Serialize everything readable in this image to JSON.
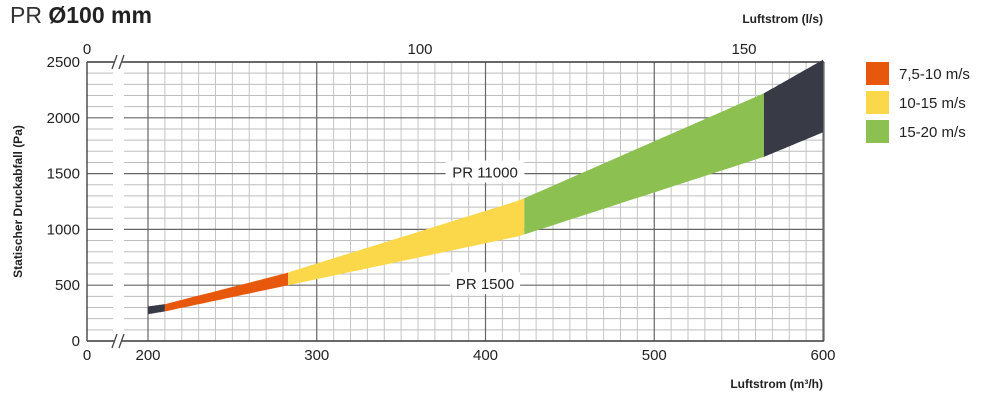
{
  "title": {
    "prefix": "PR",
    "main": "Ø100 mm"
  },
  "chart_data": {
    "type": "area",
    "xlabel": "Luftstrom (m³/h)",
    "x2label": "Luftstrom (l/s)",
    "ylabel": "Statischer Druckabfall (Pa)",
    "xlim": [
      190,
      600
    ],
    "x_break_start_label": "0",
    "x_ticks": [
      200,
      300,
      400,
      500,
      600
    ],
    "x2_ticks": [
      0,
      100,
      150
    ],
    "ylim": [
      0,
      2500
    ],
    "y_ticks": [
      0,
      500,
      1000,
      1500,
      2000,
      2500
    ],
    "grid": true,
    "legend_position": "right",
    "curves": [
      {
        "name": "PR 11000",
        "x": [
          200,
          210,
          280,
          420,
          565,
          600
        ],
        "y": [
          310,
          330,
          600,
          1260,
          2220,
          2520
        ]
      },
      {
        "name": "PR 1500",
        "x": [
          200,
          210,
          280,
          420,
          565,
          600
        ],
        "y": [
          240,
          265,
          490,
          940,
          1650,
          1870
        ]
      }
    ],
    "bands": [
      {
        "name": "",
        "color": "#383a45",
        "x_range": [
          200,
          210
        ]
      },
      {
        "name": "7,5-10 m/s",
        "color": "#e8580c",
        "x_range": [
          210,
          283
        ]
      },
      {
        "name": "10-15 m/s",
        "color": "#fbd84a",
        "x_range": [
          283,
          423
        ]
      },
      {
        "name": "15-20 m/s",
        "color": "#8cc152",
        "x_range": [
          423,
          565
        ]
      },
      {
        "name": "",
        "color": "#383a45",
        "x_range": [
          565,
          600
        ]
      }
    ]
  }
}
